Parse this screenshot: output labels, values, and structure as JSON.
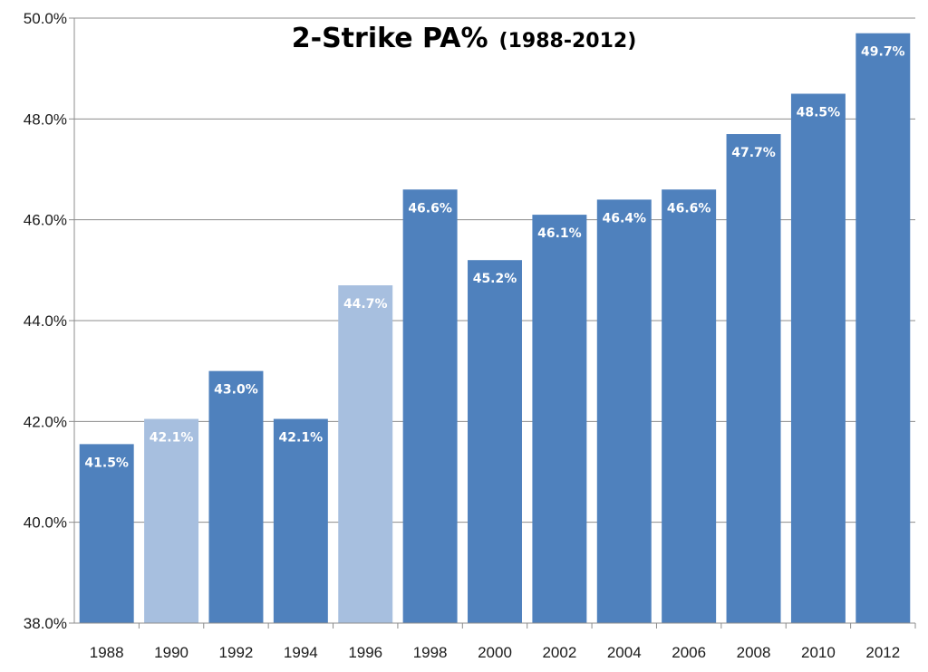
{
  "chart_data": {
    "type": "bar",
    "title": "2-Strike PA%",
    "title_suffix": "(1988-2012)",
    "xlabel": "",
    "ylabel": "",
    "categories": [
      "1988",
      "1990",
      "1992",
      "1994",
      "1996",
      "1998",
      "2000",
      "2002",
      "2004",
      "2006",
      "2008",
      "2010",
      "2012"
    ],
    "values": [
      41.55,
      42.05,
      43.0,
      42.05,
      44.7,
      46.6,
      45.2,
      46.1,
      46.4,
      46.6,
      47.7,
      48.5,
      49.7
    ],
    "value_labels": [
      "41.5%",
      "42.1%",
      "43.0%",
      "42.1%",
      "44.7%",
      "46.6%",
      "45.2%",
      "46.1%",
      "46.4%",
      "46.6%",
      "47.7%",
      "48.5%",
      "49.7%"
    ],
    "highlighted": [
      false,
      true,
      false,
      false,
      true,
      false,
      false,
      false,
      false,
      false,
      false,
      false,
      false
    ],
    "ylim": [
      38.0,
      50.0
    ],
    "yticks": [
      38,
      40,
      42,
      44,
      46,
      48,
      50
    ],
    "ytick_labels": [
      "38.0%",
      "40.0%",
      "42.0%",
      "44.0%",
      "46.0%",
      "48.0%",
      "50.0%"
    ],
    "grid": true,
    "legend": "none",
    "colors": {
      "bar": "#4f81bd",
      "bar_highlight": "#a7bfdf",
      "grid": "#8c8c8c",
      "axis": "#8c8c8c",
      "label": "#ffffff"
    }
  }
}
